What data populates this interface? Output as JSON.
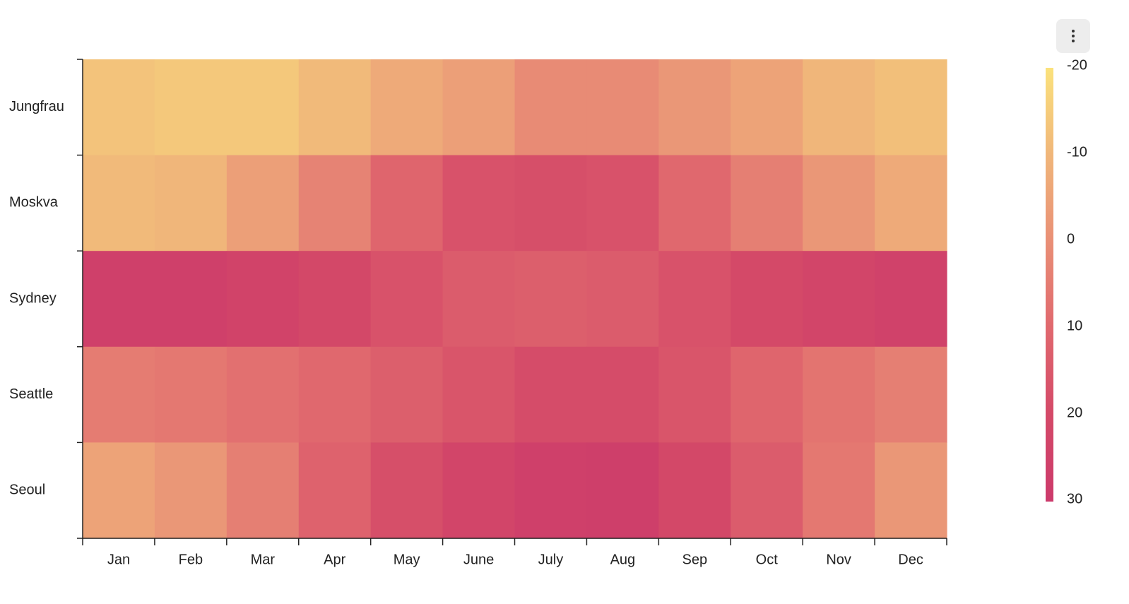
{
  "menu": {
    "icon": "kebab-menu-icon"
  },
  "chart_data": {
    "type": "heatmap",
    "title": "",
    "xlabel": "",
    "ylabel": "",
    "categories": [
      "Jan",
      "Feb",
      "Mar",
      "Apr",
      "May",
      "June",
      "July",
      "Aug",
      "Sep",
      "Oct",
      "Nov",
      "Dec"
    ],
    "rows": [
      "Jungfrau",
      "Moskva",
      "Sydney",
      "Seattle",
      "Seoul"
    ],
    "values": [
      [
        -13,
        -14,
        -14,
        -11,
        -7,
        -4,
        1,
        1,
        -2,
        -5,
        -10,
        -12
      ],
      [
        -11,
        -10,
        -4,
        3,
        11,
        17,
        18,
        17,
        10,
        4,
        -2,
        -7
      ],
      [
        26,
        26,
        24,
        21,
        17,
        14,
        13,
        14,
        17,
        20,
        23,
        25
      ],
      [
        5,
        6,
        8,
        10,
        13,
        16,
        19,
        19,
        16,
        11,
        7,
        4
      ],
      [
        -5,
        -2,
        4,
        12,
        18,
        23,
        26,
        27,
        21,
        14,
        6,
        -2
      ]
    ],
    "color_scale": {
      "min": -20,
      "max": 30,
      "ticks": [
        -20,
        -10,
        0,
        10,
        20,
        30
      ],
      "colors": [
        "#fbe27c",
        "#f0b67a",
        "#e98f76",
        "#e0686e",
        "#d44968",
        "#cc3a6b"
      ],
      "legend_position": "right"
    },
    "grid": false
  }
}
